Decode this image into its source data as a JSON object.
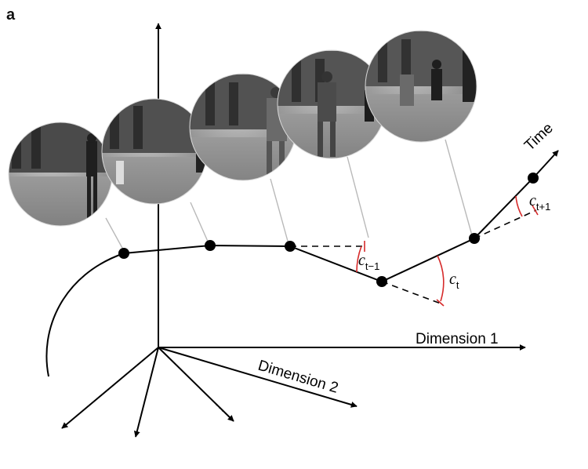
{
  "panel_label": "a",
  "axes": {
    "dimension1_label": "Dimension 1",
    "dimension2_label": "Dimension 2",
    "more_dimensions": "...",
    "time_label": "Time"
  },
  "angle_labels": [
    {
      "base": "c",
      "sub": "t−1"
    },
    {
      "base": "c",
      "sub": "t"
    },
    {
      "base": "c",
      "sub": "t+1"
    }
  ],
  "frames": [
    {
      "name": "frame-1",
      "description": "pedestrian walking"
    },
    {
      "name": "frame-2",
      "description": "pedestrian walking"
    },
    {
      "name": "frame-3",
      "description": "pedestrian walking"
    },
    {
      "name": "frame-4",
      "description": "pedestrians walking"
    },
    {
      "name": "frame-5",
      "description": "pedestrians walking"
    }
  ],
  "colors": {
    "angle": "#d62a2a",
    "leader": "#b9b9b9"
  }
}
